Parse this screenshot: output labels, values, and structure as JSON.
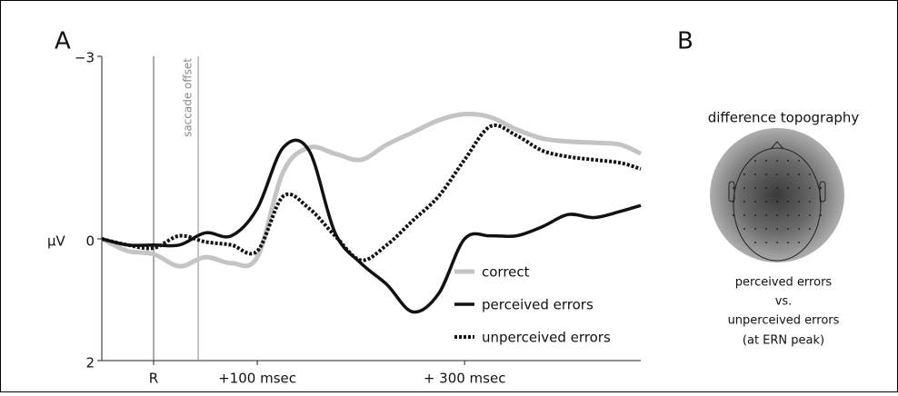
{
  "panel_labels": [
    "A",
    "B"
  ],
  "chart_data": {
    "type": "line",
    "y_label": "µV",
    "x": [
      -50,
      -25,
      0,
      25,
      50,
      75,
      100,
      125,
      150,
      175,
      200,
      225,
      250,
      275,
      300,
      325,
      350,
      375,
      400,
      425,
      450,
      470
    ],
    "series": [
      {
        "name": "correct",
        "color": "#c4c4c4",
        "style": "solid",
        "values": [
          0,
          0.2,
          0.25,
          0.45,
          0.3,
          0.4,
          0.3,
          -1.1,
          -1.5,
          -1.4,
          -1.3,
          -1.55,
          -1.75,
          -1.95,
          -2.05,
          -2.0,
          -1.8,
          -1.65,
          -1.6,
          -1.58,
          -1.55,
          -1.4
        ]
      },
      {
        "name": "perceived errors",
        "color": "#111111",
        "style": "solid",
        "values": [
          0,
          0.1,
          0.1,
          0.1,
          -0.1,
          -0.05,
          -0.5,
          -1.5,
          -1.45,
          -0.1,
          0.4,
          0.75,
          1.2,
          0.9,
          0,
          -0.05,
          -0.05,
          -0.2,
          -0.4,
          -0.35,
          -0.45,
          -0.55
        ]
      },
      {
        "name": "unperceived errors",
        "color": "#111111",
        "style": "dotted",
        "values": [
          0,
          0.1,
          0.15,
          -0.05,
          0.05,
          0.1,
          0.2,
          -0.7,
          -0.5,
          -0.05,
          0.35,
          0.1,
          -0.3,
          -0.7,
          -1.3,
          -1.85,
          -1.7,
          -1.45,
          -1.35,
          -1.3,
          -1.25,
          -1.15
        ]
      }
    ],
    "xlim": [
      -50,
      470
    ],
    "xticks": [
      {
        "value": 0,
        "label": "R"
      },
      {
        "value": 100,
        "label": "+100 msec"
      },
      {
        "value": 300,
        "label": "+ 300 msec"
      }
    ],
    "ylim": [
      -3,
      2
    ],
    "y_reversed": true,
    "yticks": [
      {
        "value": -3,
        "label": "−3"
      },
      0,
      2
    ],
    "vlines": [
      {
        "x": 0
      },
      {
        "x": 43,
        "label": "saccade offset"
      }
    ],
    "legend": "lower right"
  },
  "topography": {
    "title": "difference topography",
    "caption": [
      "perceived errors",
      "vs.",
      "unperceived errors",
      "(at ERN peak)"
    ]
  }
}
